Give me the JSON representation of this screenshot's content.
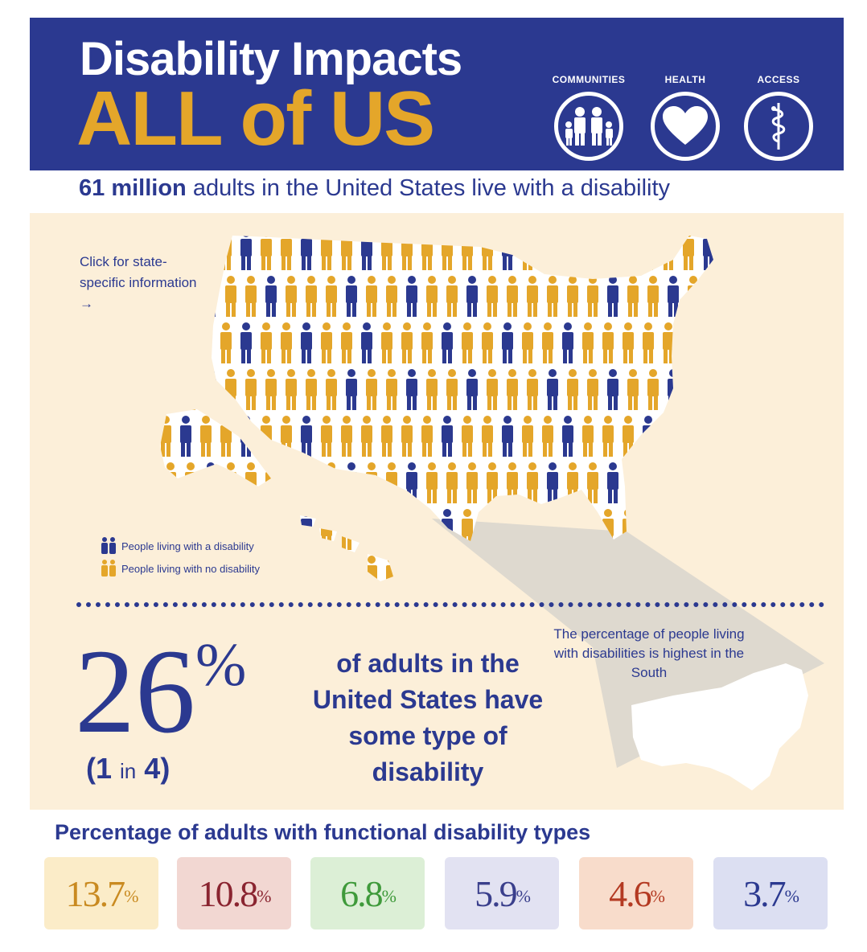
{
  "header": {
    "title_line1": "Disability Impacts",
    "title_line2": "ALL of US",
    "pillars": [
      {
        "label": "COMMUNITIES",
        "icon": "family-icon"
      },
      {
        "label": "HEALTH",
        "icon": "heart-icon"
      },
      {
        "label": "ACCESS",
        "icon": "caduceus-icon"
      }
    ]
  },
  "subhead": {
    "bold": "61 million",
    "rest": " adults in the United States live with a disability"
  },
  "map": {
    "click_note": "Click for state-specific information →",
    "legend": [
      {
        "label": "People living with a disability",
        "color": "#2b3990"
      },
      {
        "label": "People living with no disability",
        "color": "#e4a62a"
      }
    ],
    "south_note": "The percentage of people living with disabilities is highest in the South"
  },
  "stat": {
    "number": "26",
    "percent_sign": "%",
    "ratio_open": "(1",
    "ratio_in": "in",
    "ratio_close": "4)",
    "description": "of adults in the United States have some type of disability"
  },
  "types": {
    "title": "Percentage of adults with functional disability types",
    "items": [
      {
        "value": "13.7",
        "pct": "%",
        "color": "#c98a20",
        "bg": "#fbecc8"
      },
      {
        "value": "10.8",
        "pct": "%",
        "color": "#8a2430",
        "bg": "#f2d7d2"
      },
      {
        "value": "6.8",
        "pct": "%",
        "color": "#3f9a3b",
        "bg": "#dcefd6"
      },
      {
        "value": "5.9",
        "pct": "%",
        "color": "#3a3f8c",
        "bg": "#e2e2f2"
      },
      {
        "value": "4.6",
        "pct": "%",
        "color": "#b43a22",
        "bg": "#f8dccb"
      },
      {
        "value": "3.7",
        "pct": "%",
        "color": "#2b3990",
        "bg": "#dcdff2"
      }
    ]
  },
  "colors": {
    "navy": "#2b3990",
    "gold": "#e4a62a",
    "panel": "#fcefd9"
  }
}
